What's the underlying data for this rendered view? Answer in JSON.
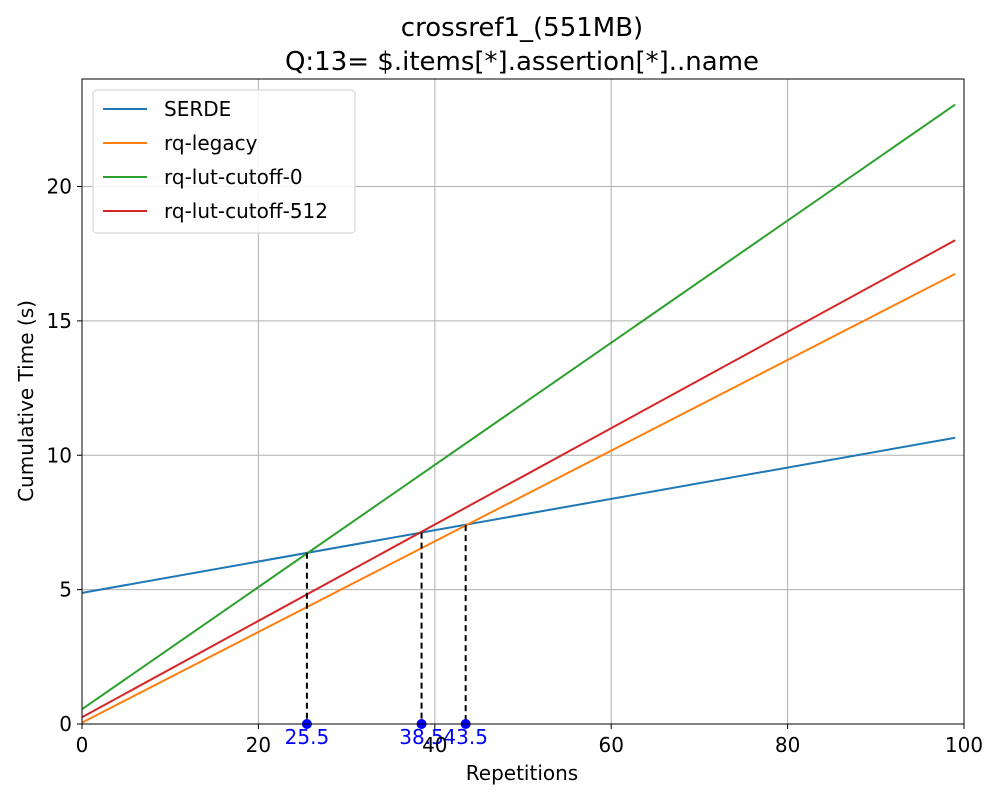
{
  "chart_data": {
    "type": "line",
    "title": "crossref1_(551MB)",
    "subtitle": "Q:13= $.items[*].assertion[*]..name",
    "xlabel": "Repetitions",
    "ylabel": "Cumulative Time (s)",
    "xlim": [
      0,
      100
    ],
    "ylim": [
      0,
      24
    ],
    "xticks": [
      0,
      20,
      40,
      60,
      80,
      100
    ],
    "yticks": [
      0,
      5,
      10,
      15,
      20
    ],
    "grid": true,
    "legend_position": "top-left",
    "series": [
      {
        "name": "SERDE",
        "color": "#1f77b4",
        "x": [
          0,
          99
        ],
        "y": [
          4.88,
          10.65
        ]
      },
      {
        "name": "rq-legacy",
        "color": "#ff7f0e",
        "x": [
          0,
          99
        ],
        "y": [
          0.05,
          16.75
        ]
      },
      {
        "name": "rq-lut-cutoff-0",
        "color": "#2ca02c",
        "x": [
          0,
          99
        ],
        "y": [
          0.55,
          23.05
        ]
      },
      {
        "name": "rq-lut-cutoff-512",
        "color": "#d62728",
        "x": [
          0,
          99
        ],
        "y": [
          0.25,
          18.0
        ]
      }
    ],
    "crossovers": [
      {
        "x": 25.5,
        "y": 6.37,
        "label": "25.5"
      },
      {
        "x": 38.5,
        "y": 7.12,
        "label": "38.5"
      },
      {
        "x": 43.5,
        "y": 7.4,
        "label": "43.5"
      }
    ],
    "crossover_color": "#0000ff"
  }
}
